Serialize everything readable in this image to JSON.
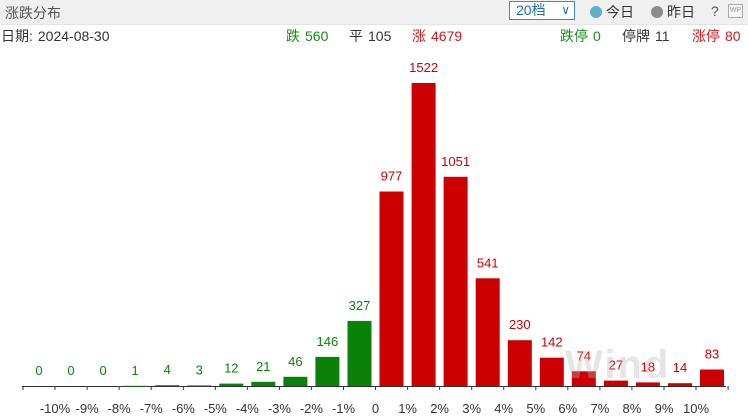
{
  "header": {
    "title": "涨跌分布",
    "range_select": "20档",
    "radio_today": "今日",
    "radio_yesterday": "昨日",
    "help": "?",
    "wp_icon_text": "WP"
  },
  "stats": {
    "date_label": "日期:",
    "date_value": "2024-08-30",
    "fall_label": "跌",
    "fall_value": "560",
    "flat_label": "平",
    "flat_value": "105",
    "rise_label": "涨",
    "rise_value": "4679",
    "limit_down_label": "跌停",
    "limit_down_value": "0",
    "suspended_label": "停牌",
    "suspended_value": "11",
    "limit_up_label": "涨停",
    "limit_up_value": "80"
  },
  "watermark": "Wind",
  "colors": {
    "down": "#0a820a",
    "up": "#cc0000",
    "axis": "#333333"
  },
  "chart_data": {
    "type": "bar",
    "categories": [
      "",
      "-10%",
      "-9%",
      "-8%",
      "-7%",
      "-6%",
      "-5%",
      "-4%",
      "-3%",
      "-2%",
      "-1%",
      "0",
      "1%",
      "2%",
      "3%",
      "4%",
      "5%",
      "6%",
      "7%",
      "8%",
      "9%",
      "10%",
      ""
    ],
    "values": [
      0,
      0,
      0,
      1,
      4,
      3,
      12,
      21,
      46,
      146,
      327,
      977,
      1522,
      1051,
      541,
      230,
      142,
      74,
      27,
      18,
      14,
      83
    ],
    "labels": [
      "0",
      "0",
      "0",
      "1",
      "4",
      "3",
      "12",
      "21",
      "46",
      "146",
      "327",
      "977",
      "1522",
      "1051",
      "541",
      "230",
      "142",
      "74",
      "27",
      "18",
      "14",
      "83"
    ],
    "direction": [
      "down",
      "down",
      "down",
      "down",
      "down",
      "down",
      "down",
      "down",
      "down",
      "down",
      "down",
      "up",
      "up",
      "up",
      "up",
      "up",
      "up",
      "up",
      "up",
      "up",
      "up",
      "up"
    ],
    "ylim": [
      0,
      1522
    ]
  }
}
